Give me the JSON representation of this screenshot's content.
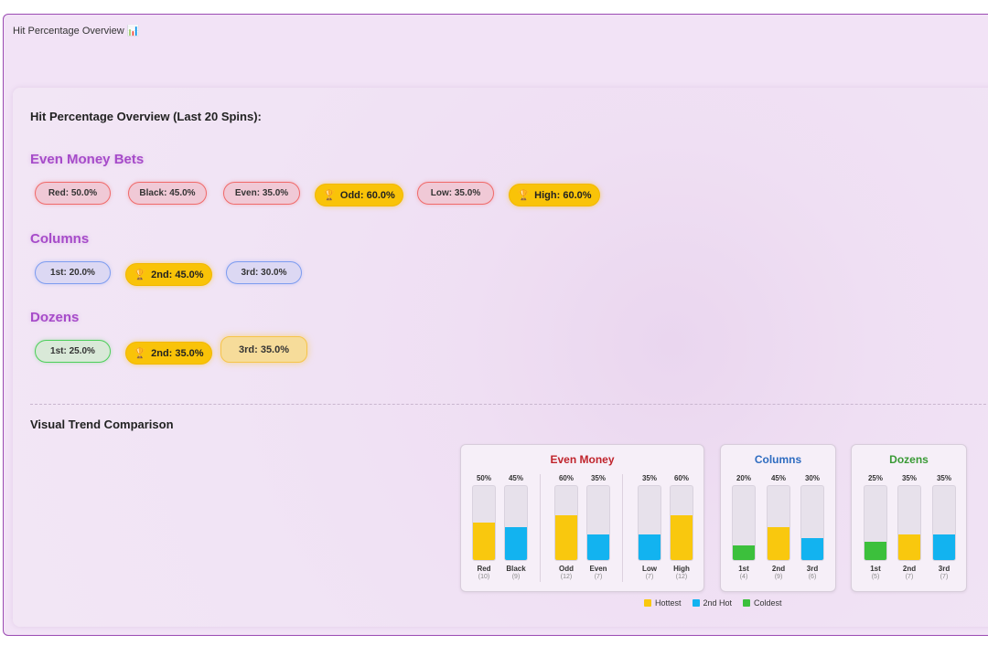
{
  "panel": {
    "title": "Hit Percentage Overview",
    "title_icon": "bar-chart-icon"
  },
  "overview": {
    "heading": "Hit Percentage Overview (Last 20 Spins):",
    "sections": [
      {
        "title": "Even Money Bets",
        "pills": [
          {
            "label": "Red: 50.0%",
            "style": "red",
            "trophy": false
          },
          {
            "label": "Black: 45.0%",
            "style": "red",
            "trophy": false
          },
          {
            "label": "Even: 35.0%",
            "style": "red",
            "trophy": false
          },
          {
            "label": "Odd: 60.0%",
            "style": "gold",
            "trophy": true
          },
          {
            "label": "Low: 35.0%",
            "style": "red",
            "trophy": false
          },
          {
            "label": "High: 60.0%",
            "style": "gold",
            "trophy": true
          }
        ]
      },
      {
        "title": "Columns",
        "pills": [
          {
            "label": "1st: 20.0%",
            "style": "blue",
            "trophy": false
          },
          {
            "label": "2nd: 45.0%",
            "style": "gold",
            "trophy": true
          },
          {
            "label": "3rd: 30.0%",
            "style": "blue",
            "trophy": false
          }
        ]
      },
      {
        "title": "Dozens",
        "pills": [
          {
            "label": "1st: 25.0%",
            "style": "green",
            "trophy": false
          },
          {
            "label": "2nd: 35.0%",
            "style": "gold",
            "trophy": true
          },
          {
            "label": "3rd: 35.0%",
            "style": "soft-gold",
            "trophy": false
          }
        ]
      }
    ]
  },
  "trend": {
    "heading": "Visual Trend Comparison",
    "legend": [
      {
        "label": "Hottest",
        "color": "#f9c80e"
      },
      {
        "label": "2nd Hot",
        "color": "#12b3f0"
      },
      {
        "label": "Coldest",
        "color": "#3cc03c"
      }
    ]
  },
  "chart_data": [
    {
      "type": "bar",
      "title": "Even Money",
      "title_color": "#c0242c",
      "categories": [
        "Red",
        "Black",
        "Odd",
        "Even",
        "Low",
        "High"
      ],
      "values": [
        50,
        45,
        60,
        35,
        35,
        60
      ],
      "value_labels": [
        "50%",
        "45%",
        "60%",
        "35%",
        "35%",
        "60%"
      ],
      "counts": [
        "(10)",
        "(9)",
        "(12)",
        "(7)",
        "(7)",
        "(12)"
      ],
      "bar_colors": [
        "#f9c80e",
        "#12b3f0",
        "#f9c80e",
        "#12b3f0",
        "#12b3f0",
        "#f9c80e"
      ],
      "ylim": [
        0,
        100
      ]
    },
    {
      "type": "bar",
      "title": "Columns",
      "title_color": "#2e6cc0",
      "categories": [
        "1st",
        "2nd",
        "3rd"
      ],
      "values": [
        20,
        45,
        30
      ],
      "value_labels": [
        "20%",
        "45%",
        "30%"
      ],
      "counts": [
        "(4)",
        "(9)",
        "(6)"
      ],
      "bar_colors": [
        "#3cc03c",
        "#f9c80e",
        "#12b3f0"
      ],
      "ylim": [
        0,
        100
      ]
    },
    {
      "type": "bar",
      "title": "Dozens",
      "title_color": "#3a9a36",
      "categories": [
        "1st",
        "2nd",
        "3rd"
      ],
      "values": [
        25,
        35,
        35
      ],
      "value_labels": [
        "25%",
        "35%",
        "35%"
      ],
      "counts": [
        "(5)",
        "(7)",
        "(7)"
      ],
      "bar_colors": [
        "#3cc03c",
        "#f9c80e",
        "#12b3f0"
      ],
      "ylim": [
        0,
        100
      ]
    }
  ]
}
